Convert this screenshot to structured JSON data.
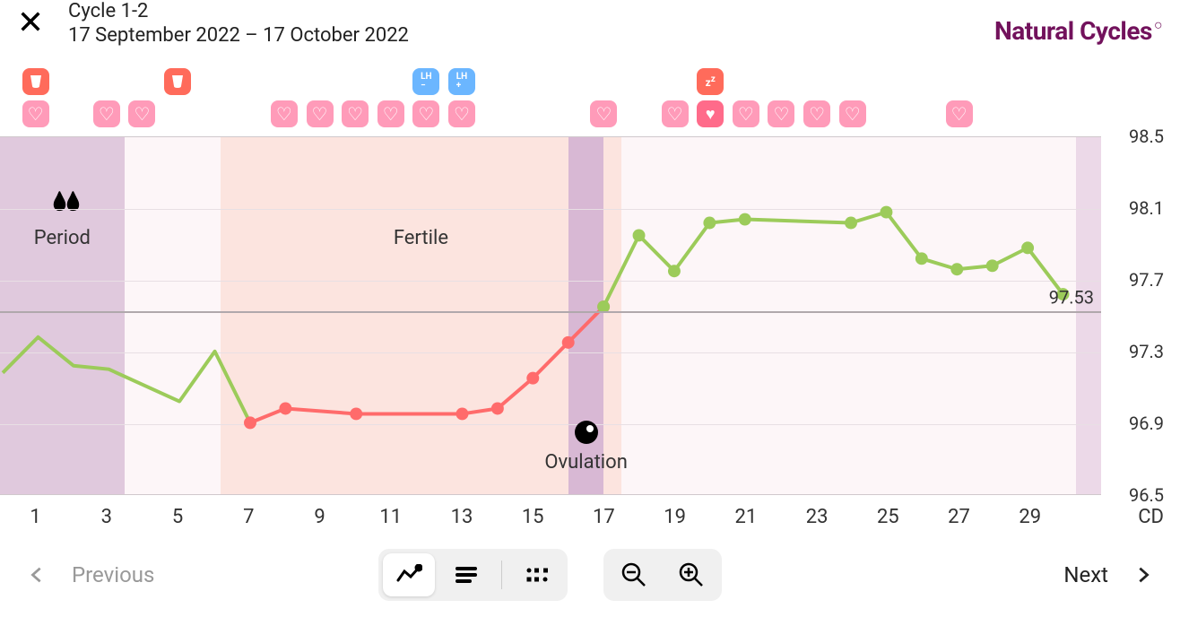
{
  "header": {
    "cycle_title": "Cycle 1-2",
    "date_range": "17 September 2022 – 17 October 2022",
    "brand": "Natural Cycles"
  },
  "colors": {
    "brand": "#72125c",
    "badge_red": "#ff6b5b",
    "badge_blue": "#6bb6ff",
    "badge_pink": "#ff9bb9",
    "badge_heart_fill": "#ff6b8a",
    "period_bg": "#e0c9dd",
    "fertile_bg": "#fce4df",
    "ovulation_bg": "#d8b8d4",
    "post_bg_light": "#fdf6f8",
    "post_bg_edge": "#ecd9e8",
    "line_green": "#9ccb5a",
    "line_red": "#ff6b6b",
    "grid": "#e8dfe4",
    "refline": "#b0a8ac"
  },
  "badges_row1": [
    {
      "day": 1,
      "type": "red",
      "content": "cup"
    },
    {
      "day": 5,
      "type": "red",
      "content": "cup"
    },
    {
      "day": 12,
      "type": "blue",
      "content": "LH−"
    },
    {
      "day": 13,
      "type": "blue",
      "content": "LH+"
    },
    {
      "day": 20,
      "type": "red",
      "content": "zz"
    }
  ],
  "badges_row2": [
    {
      "day": 1,
      "type": "pink",
      "content": "heart"
    },
    {
      "day": 3,
      "type": "pink",
      "content": "heart-outline"
    },
    {
      "day": 4,
      "type": "pink",
      "content": "heart-outline"
    },
    {
      "day": 8,
      "type": "pink",
      "content": "heart-outline"
    },
    {
      "day": 9,
      "type": "pink",
      "content": "heart-outline"
    },
    {
      "day": 10,
      "type": "pink",
      "content": "heart-outline"
    },
    {
      "day": 11,
      "type": "pink",
      "content": "heart-outline"
    },
    {
      "day": 12,
      "type": "pink",
      "content": "heart-outline"
    },
    {
      "day": 13,
      "type": "pink",
      "content": "heart-outline"
    },
    {
      "day": 17,
      "type": "pink",
      "content": "heart-outline"
    },
    {
      "day": 19,
      "type": "pink",
      "content": "heart-outline"
    },
    {
      "day": 20,
      "type": "filled-heart",
      "content": "heart-fill"
    },
    {
      "day": 21,
      "type": "pink",
      "content": "heart-outline"
    },
    {
      "day": 22,
      "type": "pink",
      "content": "heart-outline"
    },
    {
      "day": 23,
      "type": "pink",
      "content": "heart-outline"
    },
    {
      "day": 24,
      "type": "pink",
      "content": "heart-outline"
    },
    {
      "day": 27,
      "type": "pink",
      "content": "heart-outline"
    }
  ],
  "chart": {
    "type": "line",
    "x_start": 0,
    "x_end": 31,
    "y_min": 96.5,
    "y_max": 98.5,
    "y_ticks": [
      96.5,
      96.9,
      97.3,
      97.7,
      98.1,
      98.5
    ],
    "x_ticks": [
      1,
      3,
      5,
      7,
      9,
      11,
      13,
      15,
      17,
      19,
      21,
      23,
      25,
      27,
      29
    ],
    "x_axis_label": "CD",
    "refline": 97.53,
    "refline_label": "97.53",
    "phases": [
      {
        "name": "period",
        "start": 0,
        "end": 3.5,
        "color": "#e0c9dd",
        "label": "Period",
        "show_drops": true
      },
      {
        "name": "gap1",
        "start": 3.5,
        "end": 6.2,
        "color": "#fdf6f8"
      },
      {
        "name": "fertile",
        "start": 6.2,
        "end": 17.5,
        "color": "#fce4df",
        "label": "Fertile"
      },
      {
        "name": "luteal",
        "start": 17.5,
        "end": 30.3,
        "color": "#fdf6f8"
      },
      {
        "name": "edge",
        "start": 30.3,
        "end": 31,
        "color": "#ecd9e8"
      }
    ],
    "ovulation": {
      "day_start": 16,
      "day_end": 17,
      "bg": "#d8b8d4",
      "label": "Ovulation",
      "marker_day": 16.5,
      "marker_y": 97.02
    },
    "segments": [
      {
        "color": "#9ccb5a",
        "markers": false,
        "points": [
          {
            "x": 0,
            "y": 97.18
          },
          {
            "x": 1,
            "y": 97.38
          },
          {
            "x": 2,
            "y": 97.22
          },
          {
            "x": 3,
            "y": 97.2
          },
          {
            "x": 5,
            "y": 97.02
          },
          {
            "x": 6,
            "y": 97.3
          },
          {
            "x": 7,
            "y": 96.9
          }
        ]
      },
      {
        "color": "#ff6b6b",
        "markers": true,
        "points": [
          {
            "x": 7,
            "y": 96.9
          },
          {
            "x": 8,
            "y": 96.98
          },
          {
            "x": 10,
            "y": 96.95
          },
          {
            "x": 13,
            "y": 96.95
          },
          {
            "x": 14,
            "y": 96.98
          },
          {
            "x": 15,
            "y": 97.15
          },
          {
            "x": 16,
            "y": 97.35
          },
          {
            "x": 17,
            "y": 97.55
          }
        ]
      },
      {
        "color": "#9ccb5a",
        "markers": true,
        "points": [
          {
            "x": 17,
            "y": 97.55
          },
          {
            "x": 18,
            "y": 97.95
          },
          {
            "x": 19,
            "y": 97.75
          },
          {
            "x": 20,
            "y": 98.02
          },
          {
            "x": 21,
            "y": 98.04
          },
          {
            "x": 24,
            "y": 98.02
          },
          {
            "x": 25,
            "y": 98.08
          },
          {
            "x": 26,
            "y": 97.82
          },
          {
            "x": 27,
            "y": 97.76
          },
          {
            "x": 28,
            "y": 97.78
          },
          {
            "x": 29,
            "y": 97.88
          },
          {
            "x": 30,
            "y": 97.62
          }
        ]
      }
    ],
    "line_width": 4,
    "marker_radius": 7
  },
  "footer": {
    "prev_label": "Previous",
    "next_label": "Next"
  }
}
